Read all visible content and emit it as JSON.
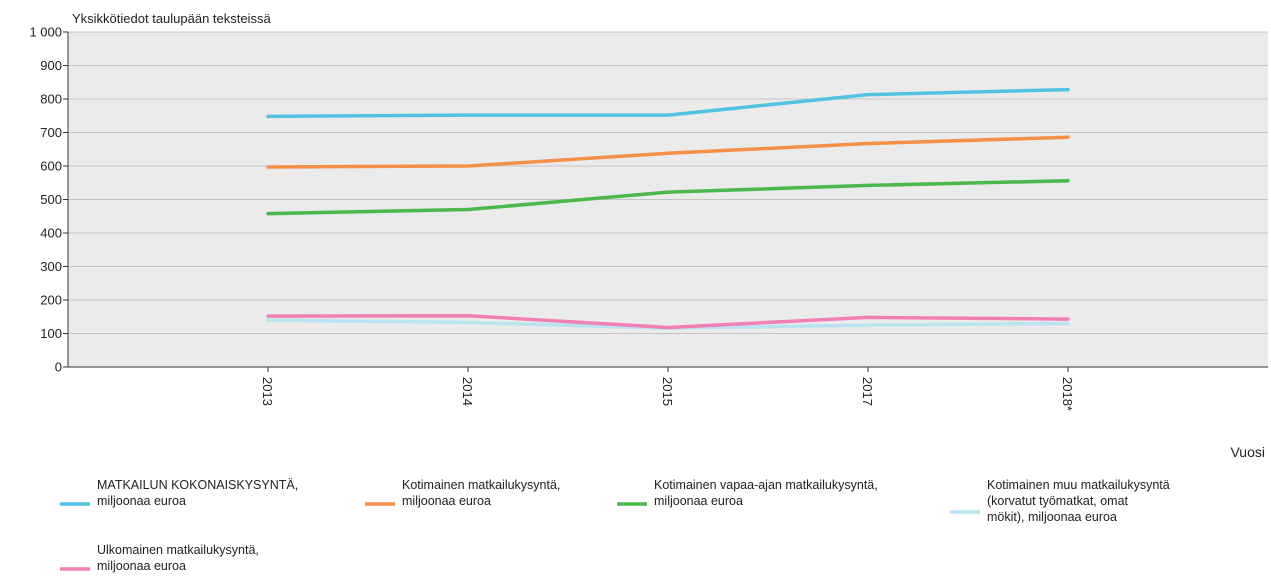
{
  "chart_data": {
    "type": "line",
    "unit_note": "Yksikkötiedot taulupään teksteissä",
    "xlabel": "Vuosi",
    "ylabel": "",
    "categories": [
      "2013",
      "2014",
      "2015",
      "2017",
      "2018*"
    ],
    "ylim": [
      0,
      1000
    ],
    "yticks": [
      0,
      100,
      200,
      300,
      400,
      500,
      600,
      700,
      800,
      900,
      1000
    ],
    "ytick_labels": [
      "0",
      "100",
      "200",
      "300",
      "400",
      "500",
      "600",
      "700",
      "800",
      "900",
      "1 000"
    ],
    "grid": true,
    "legend_position": "bottom",
    "series": [
      {
        "name": "MATKAILUN KOKONAISKYSYNTÄ, miljoonaa euroa",
        "name_lines": [
          "MATKAILUN KOKONAISKYSYNTÄ,",
          "miljoonaa euroa"
        ],
        "color": "#4fc3e0",
        "values": [
          748,
          752,
          752,
          813,
          828
        ]
      },
      {
        "name": "Kotimainen matkailukysyntä, miljoonaa euroa",
        "name_lines": [
          "Kotimainen matkailukysyntä,",
          "miljoonaa euroa"
        ],
        "color": "#f5904a",
        "values": [
          597,
          600,
          638,
          667,
          686
        ]
      },
      {
        "name": "Kotimainen vapaa-ajan matkailukysyntä, miljoonaa euroa",
        "name_lines": [
          "Kotimainen vapaa-ajan matkailukysyntä,",
          "miljoonaa euroa"
        ],
        "color": "#4cb84c",
        "values": [
          458,
          470,
          522,
          542,
          556
        ]
      },
      {
        "name": "Kotimainen muu matkailukysyntä (korvatut työmatkat, omat mökit), miljoonaa euroa",
        "name_lines": [
          "Kotimainen muu matkailukysyntä",
          "(korvatut työmatkat, omat",
          "mökit), miljoonaa euroa"
        ],
        "color": "#b9e3f0",
        "values": [
          140,
          133,
          116,
          125,
          130
        ]
      },
      {
        "name": "Ulkomainen matkailukysyntä, miljoonaa euroa",
        "name_lines": [
          "Ulkomainen matkailukysyntä,",
          "miljoonaa euroa"
        ],
        "color": "#f080b4",
        "values": [
          152,
          153,
          118,
          148,
          143
        ]
      }
    ]
  }
}
